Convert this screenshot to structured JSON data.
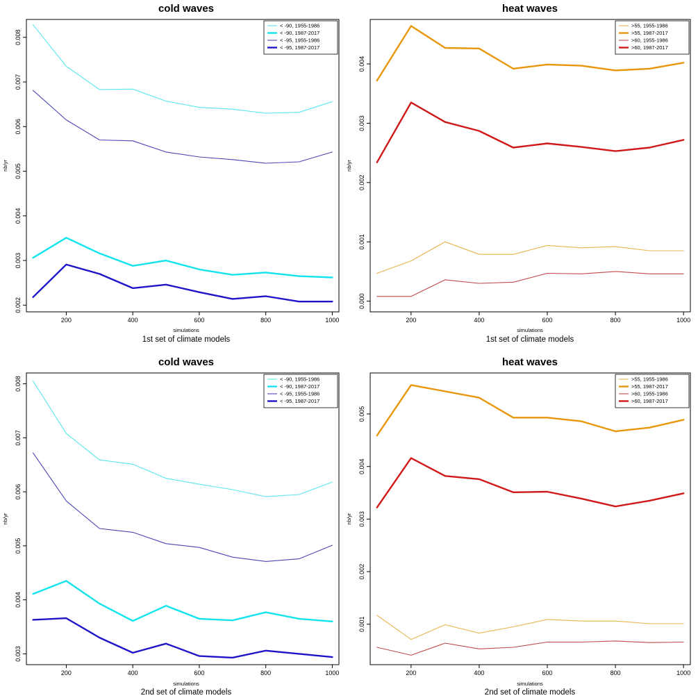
{
  "chart_data": [
    {
      "type": "line",
      "title": "cold waves",
      "xlabel": "simulations",
      "subtitle": "1st set of climate models",
      "ylabel": "nb/yr",
      "x": [
        100,
        200,
        300,
        400,
        500,
        600,
        700,
        800,
        900,
        1000
      ],
      "xlim": [
        80,
        1020
      ],
      "ylim": [
        0.00185,
        0.0084
      ],
      "xticks": [
        "200",
        "400",
        "600",
        "800",
        "1000"
      ],
      "yticks": [
        "0.002",
        "0.003",
        "0.004",
        "0.005",
        "0.006",
        "0.007",
        "0.008"
      ],
      "legend_position": "top-right",
      "series": [
        {
          "name": "< -90, 1955-1986",
          "color": "#5ae6ee",
          "weight": "thin",
          "values": [
            0.00828,
            0.00735,
            0.00683,
            0.00684,
            0.00657,
            0.00643,
            0.00639,
            0.0063,
            0.00632,
            0.00656
          ]
        },
        {
          "name": "< -90, 1987-2017",
          "color": "#12e4ee",
          "weight": "thick",
          "values": [
            0.00306,
            0.00351,
            0.00316,
            0.00288,
            0.003,
            0.0028,
            0.00268,
            0.00273,
            0.00265,
            0.00262
          ]
        },
        {
          "name": "< -95, 1955-1986",
          "color": "#4a45b5",
          "weight": "thin",
          "values": [
            0.00681,
            0.00615,
            0.0057,
            0.00568,
            0.00543,
            0.00532,
            0.00526,
            0.00518,
            0.00521,
            0.00543
          ]
        },
        {
          "name": "< -95, 1987-2017",
          "color": "#1e14c8",
          "weight": "thick",
          "values": [
            0.00218,
            0.00291,
            0.0027,
            0.00238,
            0.00246,
            0.00229,
            0.00214,
            0.0022,
            0.00208,
            0.00208
          ]
        }
      ]
    },
    {
      "type": "line",
      "title": "heat waves",
      "xlabel": "simulations",
      "subtitle": "1st set of climate models",
      "ylabel": "nb/yr",
      "x": [
        100,
        200,
        300,
        400,
        500,
        600,
        700,
        800,
        900,
        1000
      ],
      "xlim": [
        80,
        1020
      ],
      "ylim": [
        -0.00018,
        0.00475
      ],
      "xticks": [
        "200",
        "400",
        "600",
        "800",
        "1000"
      ],
      "yticks": [
        "0.000",
        "0.001",
        "0.002",
        "0.003",
        "0.004"
      ],
      "legend_position": "top-right",
      "series": [
        {
          "name": ">55, 1955-1986",
          "color": "#e8b34e",
          "weight": "thin",
          "values": [
            0.00047,
            0.00068,
            0.001,
            0.00079,
            0.00079,
            0.00094,
            0.0009,
            0.00092,
            0.00085,
            0.00085
          ]
        },
        {
          "name": ">55, 1987-2017",
          "color": "#e8960a",
          "weight": "thick",
          "values": [
            0.00372,
            0.00464,
            0.00427,
            0.00426,
            0.00392,
            0.00399,
            0.00397,
            0.00389,
            0.00392,
            0.00402
          ]
        },
        {
          "name": ">60, 1955-1986",
          "color": "#c04a4a",
          "weight": "thin",
          "values": [
            8e-05,
            8e-05,
            0.00036,
            0.0003,
            0.00032,
            0.00047,
            0.00046,
            0.0005,
            0.00046,
            0.00046
          ]
        },
        {
          "name": ">60, 1987-2017",
          "color": "#d01818",
          "weight": "thick",
          "values": [
            0.00234,
            0.00335,
            0.00302,
            0.00287,
            0.00259,
            0.00266,
            0.0026,
            0.00253,
            0.00259,
            0.00272
          ]
        }
      ]
    },
    {
      "type": "line",
      "title": "cold waves",
      "xlabel": "simulations",
      "subtitle": "2nd set of climate models",
      "ylabel": "nb/yr",
      "x": [
        100,
        200,
        300,
        400,
        500,
        600,
        700,
        800,
        900,
        1000
      ],
      "xlim": [
        80,
        1020
      ],
      "ylim": [
        0.0028,
        0.0082
      ],
      "xticks": [
        "200",
        "400",
        "600",
        "800",
        "1000"
      ],
      "yticks": [
        "0.003",
        "0.004",
        "0.005",
        "0.006",
        "0.007",
        "0.008"
      ],
      "legend_position": "top-right",
      "series": [
        {
          "name": "< -90, 1955-1986",
          "color": "#5ae6ee",
          "weight": "thin",
          "values": [
            0.00805,
            0.00708,
            0.00659,
            0.00651,
            0.00625,
            0.00614,
            0.00604,
            0.00591,
            0.00595,
            0.00618
          ]
        },
        {
          "name": "< -90, 1987-2017",
          "color": "#12e4ee",
          "weight": "thick",
          "values": [
            0.00411,
            0.00435,
            0.00393,
            0.00361,
            0.00389,
            0.00365,
            0.00362,
            0.00377,
            0.00365,
            0.0036
          ]
        },
        {
          "name": "< -95, 1955-1986",
          "color": "#4a45b5",
          "weight": "thin",
          "values": [
            0.00672,
            0.00583,
            0.00532,
            0.00525,
            0.00504,
            0.00497,
            0.00479,
            0.00471,
            0.00476,
            0.00501
          ]
        },
        {
          "name": "< -95, 1987-2017",
          "color": "#1e14c8",
          "weight": "thick",
          "values": [
            0.00363,
            0.00366,
            0.0033,
            0.00302,
            0.00319,
            0.00296,
            0.00293,
            0.00306,
            0.003,
            0.00294
          ]
        }
      ]
    },
    {
      "type": "line",
      "title": "heat waves",
      "xlabel": "simulations",
      "subtitle": "2nd set of climate models",
      "ylabel": "nb/yr",
      "x": [
        100,
        200,
        300,
        400,
        500,
        600,
        700,
        800,
        900,
        1000
      ],
      "xlim": [
        80,
        1020
      ],
      "ylim": [
        0.00023,
        0.00578
      ],
      "xticks": [
        "200",
        "400",
        "600",
        "800",
        "1000"
      ],
      "yticks": [
        "0.001",
        "0.002",
        "0.003",
        "0.004",
        "0.005"
      ],
      "legend_position": "top-right",
      "series": [
        {
          "name": ">55, 1955-1986",
          "color": "#e8b34e",
          "weight": "thin",
          "values": [
            0.00117,
            0.00071,
            0.00099,
            0.00083,
            0.00095,
            0.00109,
            0.00106,
            0.00106,
            0.00101,
            0.00101
          ]
        },
        {
          "name": ">55, 1987-2017",
          "color": "#e8960a",
          "weight": "thick",
          "values": [
            0.00459,
            0.00555,
            0.00543,
            0.00531,
            0.00493,
            0.00493,
            0.00486,
            0.00467,
            0.00474,
            0.00489
          ]
        },
        {
          "name": ">60, 1955-1986",
          "color": "#c04a4a",
          "weight": "thin",
          "values": [
            0.00056,
            0.00041,
            0.00064,
            0.00053,
            0.00056,
            0.00066,
            0.00066,
            0.00068,
            0.00065,
            0.00066
          ]
        },
        {
          "name": ">60, 1987-2017",
          "color": "#d01818",
          "weight": "thick",
          "values": [
            0.00322,
            0.00416,
            0.00382,
            0.00376,
            0.00351,
            0.00352,
            0.00339,
            0.00324,
            0.00335,
            0.00349
          ]
        }
      ]
    }
  ]
}
